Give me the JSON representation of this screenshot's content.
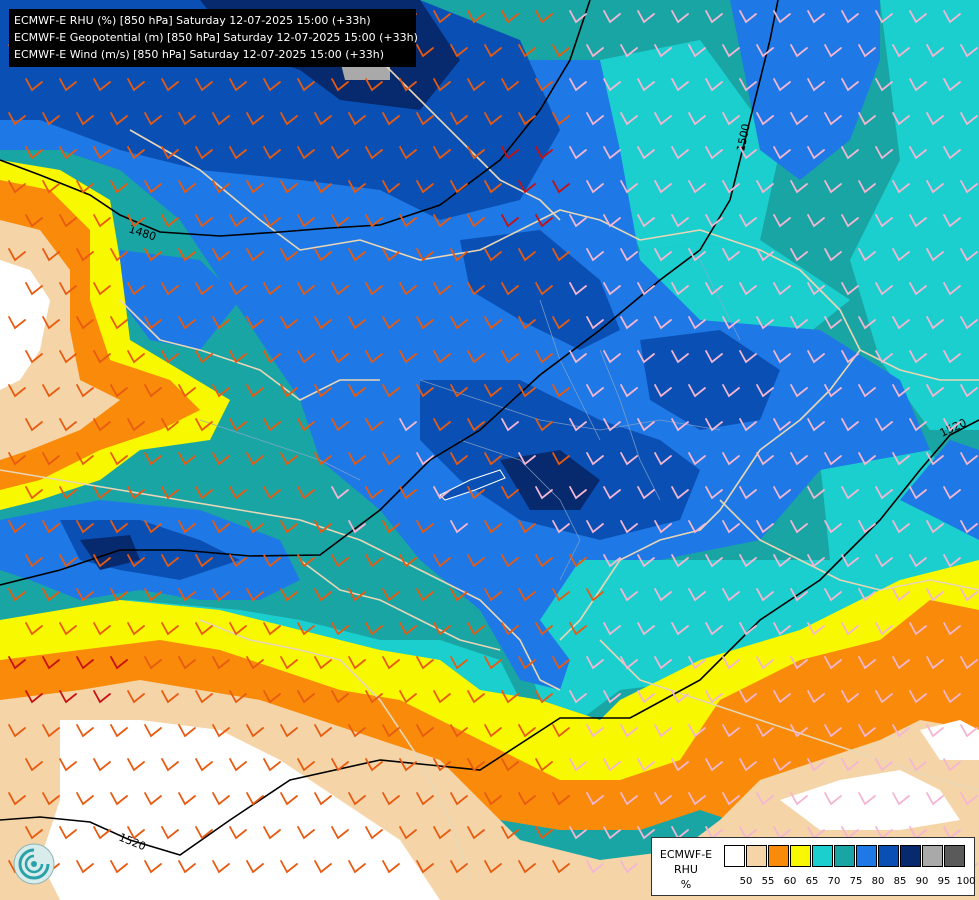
{
  "header": {
    "lines": [
      "ECMWF-E RHU (%) [850 hPa] Saturday 12-07-2025 15:00 (+33h)",
      "ECMWF-E Geopotential (m) [850 hPa] Saturday 12-07-2025 15:00 (+33h)",
      "ECMWF-E Wind (m/s) [850 hPa] Saturday 12-07-2025 15:00 (+33h)"
    ]
  },
  "contours": {
    "labels": [
      "1480",
      "1500",
      "1520",
      "1520"
    ]
  },
  "legend": {
    "title_lines": [
      "ECMWF-E",
      "RHU",
      "%"
    ],
    "ticks": [
      "50",
      "55",
      "60",
      "65",
      "70",
      "75",
      "80",
      "85",
      "90",
      "95",
      "100"
    ],
    "colors": [
      "#ffffff",
      "#f5d5a8",
      "#f98a0a",
      "#f8f800",
      "#1ccfcf",
      "#1aa5a5",
      "#1e78e6",
      "#0a50b4",
      "#07296e",
      "#a9a9a9",
      "#5a5a5a"
    ]
  },
  "palette": {
    "white": "#ffffff",
    "tan": "#f5d5a8",
    "orange": "#f98a0a",
    "yellow": "#f8f800",
    "cyan": "#1ccfcf",
    "teal": "#1aa5a5",
    "blue": "#1e78e6",
    "mid_blue": "#0a50b4",
    "navy": "#07296e",
    "grey": "#a9a9a9"
  },
  "logo": {
    "icon": "ecmwf-logo-icon"
  }
}
